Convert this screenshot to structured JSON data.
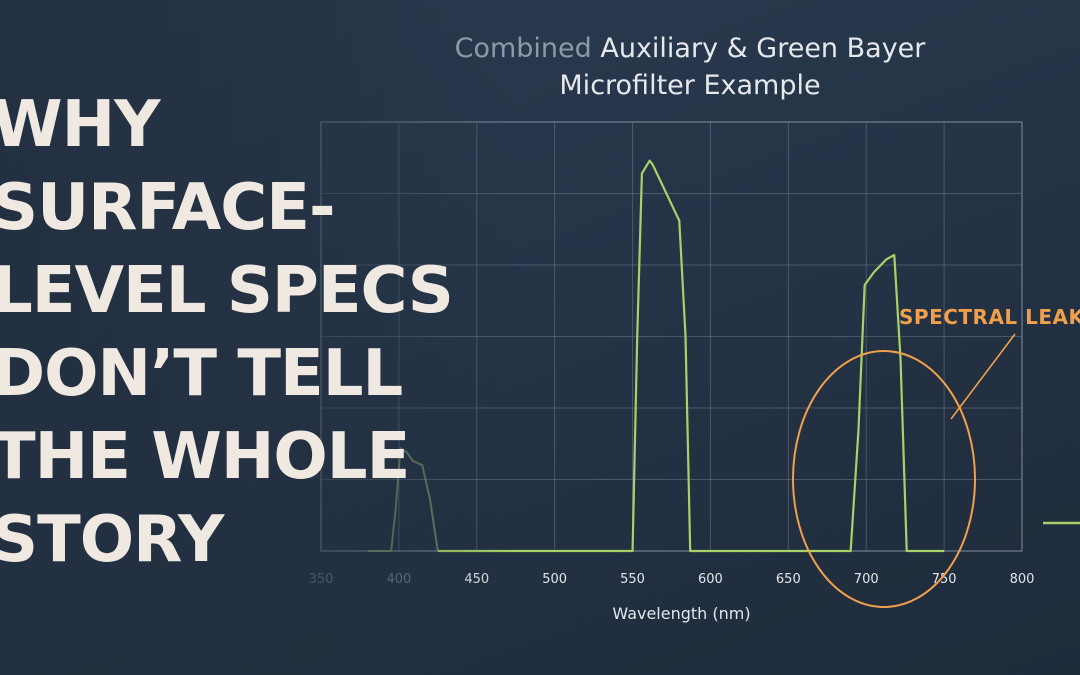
{
  "headline": {
    "lines": [
      "WHY",
      "SURFACE-",
      "LEVEL SPECS",
      "DON’T TELL",
      "THE WHOLE",
      "STORY"
    ]
  },
  "chart_data": {
    "type": "line",
    "title_dim": "Combined",
    "title_rest": " Auxiliary & Green Bayer",
    "title_line2": "Microfilter Example",
    "xlabel": "Wavelength (nm)",
    "ylabel": "",
    "xlim": [
      350,
      800
    ],
    "ylim": [
      0,
      100
    ],
    "x_ticks": [
      350,
      400,
      450,
      500,
      550,
      600,
      650,
      700,
      750,
      800
    ],
    "grid": true,
    "series": [
      {
        "color": "#a8d267",
        "points": [
          [
            380,
            0
          ],
          [
            395,
            0
          ],
          [
            398,
            10
          ],
          [
            401,
            24
          ],
          [
            405,
            23
          ],
          [
            409,
            21
          ],
          [
            415,
            20
          ],
          [
            420,
            12
          ],
          [
            425,
            0
          ],
          [
            550,
            0
          ],
          [
            553,
            50
          ],
          [
            556,
            88
          ],
          [
            561,
            91
          ],
          [
            563,
            90
          ],
          [
            580,
            77
          ],
          [
            584,
            50
          ],
          [
            587,
            0
          ],
          [
            690,
            0
          ],
          [
            695,
            28
          ],
          [
            699,
            62
          ],
          [
            705,
            65
          ],
          [
            713,
            68
          ],
          [
            718,
            69
          ],
          [
            722,
            45
          ],
          [
            726,
            0
          ],
          [
            750,
            0
          ]
        ]
      }
    ],
    "annotations": [
      {
        "text": "SPECTRAL LEAK",
        "color": "#f0a04b"
      }
    ]
  },
  "colors": {
    "line": "#a8d267",
    "annotation": "#f0a04b",
    "grid": "#6b7889",
    "headline": "#efe9e1"
  }
}
